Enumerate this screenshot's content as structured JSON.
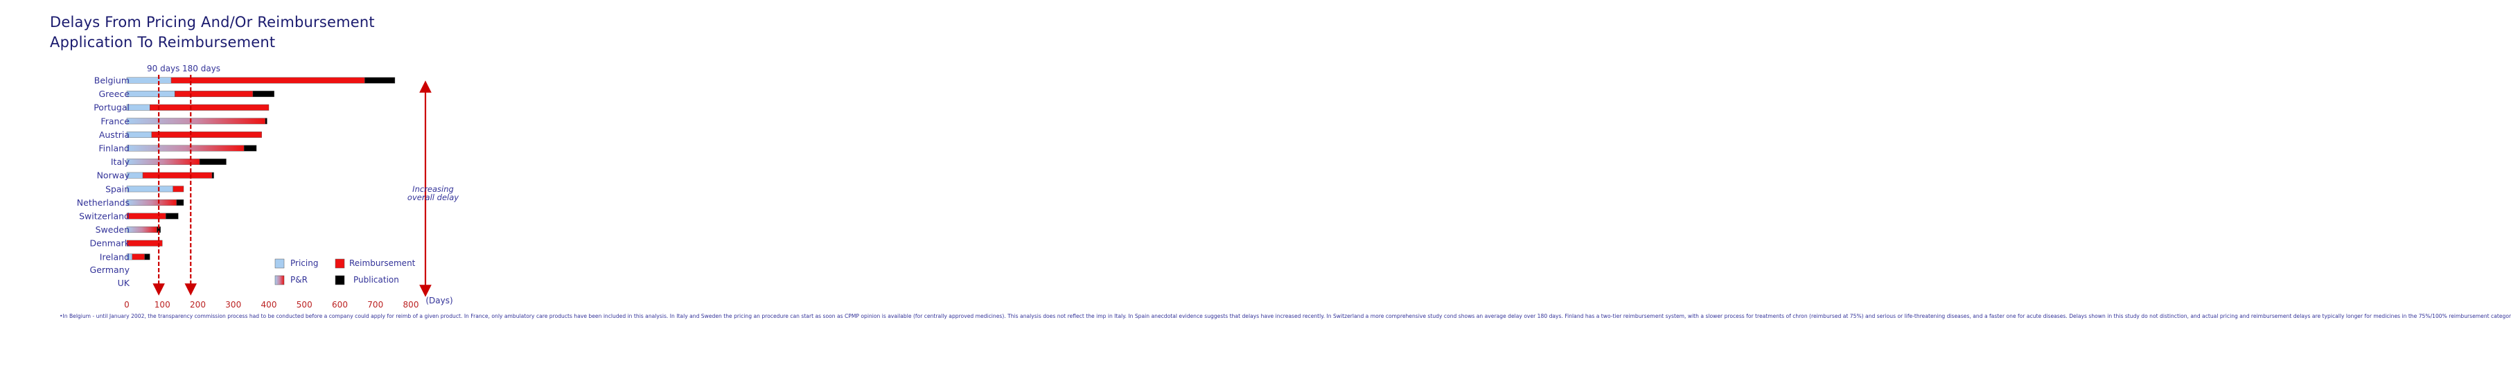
{
  "title_lines": [
    "Delays From Pricing And/Or Reimbursement",
    "Application To Reimbursement"
  ],
  "chart_data": {
    "type": "bar",
    "orientation": "horizontal-stacked",
    "unit_label": "(Days)",
    "xlim": [
      0,
      800
    ],
    "xticks": [
      0,
      100,
      200,
      300,
      400,
      500,
      600,
      700,
      800
    ],
    "reference_lines": [
      {
        "label": "90 days",
        "value": 90
      },
      {
        "label": "180 days",
        "value": 180
      }
    ],
    "annotation": "Increasing overall delay",
    "legend": [
      {
        "label": "Pricing",
        "color": "#a8cdf0"
      },
      {
        "label": "Reimbursement",
        "color": "#ee1111"
      },
      {
        "label": "P&R",
        "color": "gradient"
      },
      {
        "label": "Publication",
        "color": "#000000"
      }
    ],
    "categories": [
      "Belgium",
      "Greece",
      "Portugal",
      "France",
      "Austria",
      "Finland",
      "Italy",
      "Norway",
      "Spain",
      "Netherlands",
      "Switzerland",
      "Sweden",
      "Denmark",
      "Ireland",
      "Germany",
      "UK"
    ],
    "series": [
      {
        "name": "Pricing",
        "values": [
          125,
          135,
          65,
          0,
          70,
          0,
          0,
          45,
          130,
          0,
          0,
          0,
          0,
          15,
          0,
          0
        ]
      },
      {
        "name": "P&R",
        "values": [
          0,
          0,
          0,
          390,
          0,
          330,
          0,
          0,
          0,
          0,
          0,
          0,
          0,
          0,
          0,
          0
        ]
      },
      {
        "name": "P&R (to Italy)",
        "values": [
          0,
          0,
          0,
          0,
          0,
          0,
          205,
          0,
          0,
          0,
          0,
          0,
          0,
          0,
          0,
          0
        ]
      },
      {
        "name": "P&R (to Netherlands)",
        "values": [
          0,
          0,
          0,
          0,
          0,
          0,
          0,
          0,
          0,
          140,
          0,
          0,
          0,
          0,
          0,
          0
        ]
      },
      {
        "name": "P&R (to Sweden)",
        "values": [
          0,
          0,
          0,
          0,
          0,
          0,
          0,
          0,
          0,
          0,
          0,
          85,
          0,
          0,
          0,
          0
        ]
      },
      {
        "name": "Reimbursement",
        "values": [
          545,
          220,
          335,
          0,
          310,
          0,
          0,
          195,
          30,
          0,
          110,
          0,
          100,
          35,
          0,
          0
        ]
      },
      {
        "name": "Publication",
        "values": [
          85,
          60,
          0,
          5,
          0,
          35,
          75,
          5,
          0,
          20,
          35,
          10,
          0,
          15,
          0,
          0
        ]
      }
    ],
    "footnote": "•In Belgium - until January 2002, the transparency commission process had to be conducted before a company could apply for reimb of a given product. In France, only ambulatory care products have been included in this analysis. In Italy and Sweden the pricing an procedure can start as soon as CPMP opinion is available (for centrally approved medicines). This analysis does not reflect the imp in Italy. In Spain anecdotal evidence suggests that delays have increased recently. In Switzerland a more comprehensive study cond shows an average delay over 180 days. Finland has a two-tier reimbursement system, with a slower process for treatments of chron (reimbursed at 75%) and serious or life-threatening diseases, and a faster one for acute diseases. Delays shown in this study do not distinction, and actual pricing and reimbursement delays are typically longer for medicines in the 75%/100% reimbursement categor"
  },
  "colors": {
    "pricing": "#a8cdf0",
    "reimbursement": "#ee1111",
    "publication": "#000000",
    "ref_line": "#cc0000",
    "label": "#333399",
    "title": "#1a1a6e"
  }
}
